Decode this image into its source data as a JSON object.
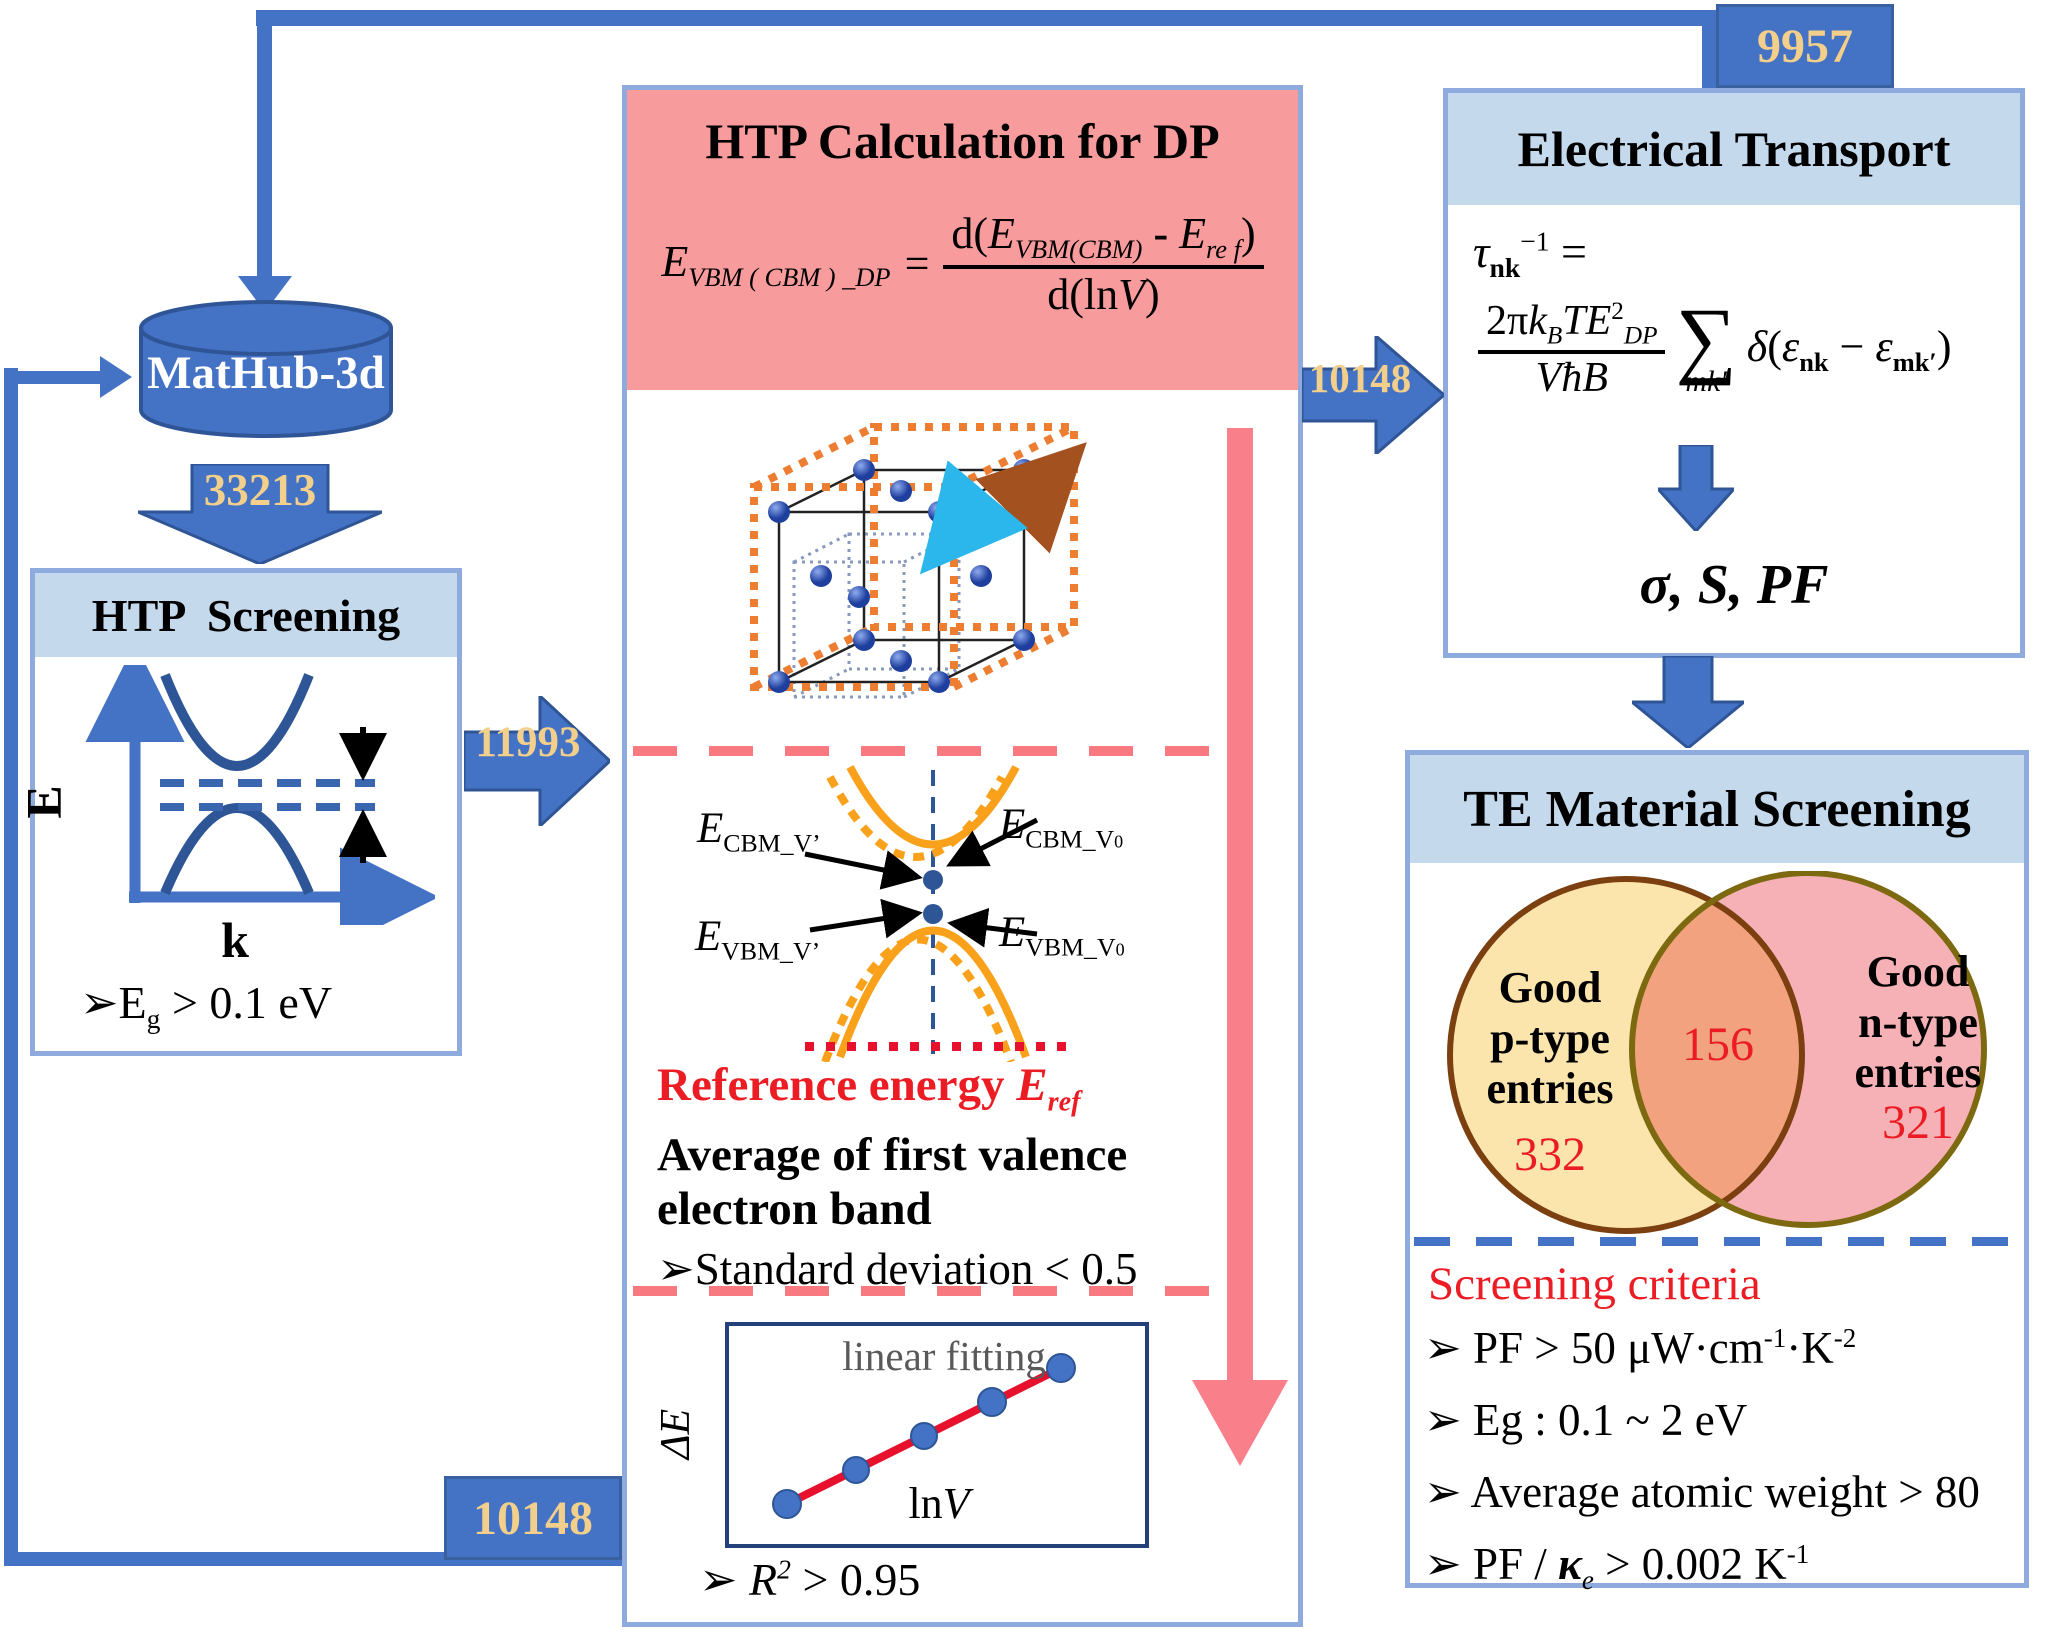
{
  "palette": {
    "blue": "#4472C4",
    "blue_dark": "#2F5597",
    "box_border": "#8FAADC",
    "header_blue": "#C5D9ED",
    "header_pink": "#F89B9D",
    "gold": "#F2CF8B",
    "salmon": "#F8797F",
    "red": "#EC1C24",
    "navy": "#24407A",
    "orange_band": "#F9A11B",
    "orange_cube": "#ED7D31",
    "gray_text": "#595959",
    "venn_left_fill": "#FBE5AC",
    "venn_left_stroke": "#7B3F10",
    "venn_right_fill": "#F6B1B7",
    "venn_right_stroke": "#7D6910",
    "venn_overlap": "#F2A27E"
  },
  "connectors": {
    "top_count": "9957",
    "loop_count": "10148"
  },
  "flow": {
    "db_to_screening": "33213",
    "screening_to_calc": "11993",
    "calc_to_transport": "10148"
  },
  "database": {
    "label": "MatHub-3d"
  },
  "screening": {
    "title": "HTP  Screening",
    "y_axis": "E",
    "x_axis": "k",
    "criterion": [
      {
        "t": "➢"
      },
      {
        "t": "E"
      },
      {
        "t": "g",
        "c": "sub"
      },
      {
        "t": " > 0.1 eV"
      }
    ]
  },
  "calc": {
    "title": "HTP Calculation for DP",
    "eq_lhs": [
      {
        "t": "E",
        "c": "it"
      },
      {
        "t": "VBM ( CBM ) _DP",
        "c": "sub it"
      }
    ],
    "eq_sign": "=",
    "eq_num": [
      {
        "t": "d("
      },
      {
        "t": "E",
        "c": "it"
      },
      {
        "t": "VBM(CBM)",
        "c": "sub it"
      },
      {
        "t": " - ",
        "c": "b"
      },
      {
        "t": "E",
        "c": "it"
      },
      {
        "t": "re f",
        "c": "sub it"
      },
      {
        "t": ")"
      }
    ],
    "eq_den": [
      {
        "t": "d(ln"
      },
      {
        "t": "V",
        "c": "it"
      },
      {
        "t": ")"
      }
    ],
    "band_labels": {
      "cbm_vp": [
        {
          "t": "E",
          "c": "it"
        },
        {
          "t": "CBM_V’",
          "c": "sub"
        }
      ],
      "cbm_v0": [
        {
          "t": "E",
          "c": "it"
        },
        {
          "t": "CBM_V",
          "c": "sub"
        },
        {
          "t": "0",
          "c": "sub2"
        }
      ],
      "vbm_vp": [
        {
          "t": "E",
          "c": "it"
        },
        {
          "t": "VBM_V’",
          "c": "sub"
        }
      ],
      "vbm_v0": [
        {
          "t": "E",
          "c": "it"
        },
        {
          "t": "VBM_V",
          "c": "sub"
        },
        {
          "t": "0",
          "c": "sub2"
        }
      ]
    },
    "ref_energy": [
      {
        "t": "Reference energy "
      },
      {
        "t": "E",
        "c": "it b"
      },
      {
        "t": "ref",
        "c": "sub it b"
      }
    ],
    "avg_band": "Average of first valence electron band",
    "std_criterion": [
      {
        "t": "➢"
      },
      {
        "t": "Standard deviation < 0.5"
      }
    ],
    "plot": {
      "annotation": "linear fitting",
      "y_label": [
        {
          "t": "ΔE",
          "c": "it"
        }
      ],
      "x_label": [
        {
          "t": "ln"
        },
        {
          "t": "V",
          "c": "it"
        }
      ]
    },
    "r2_criterion": [
      {
        "t": "➢ "
      },
      {
        "t": "R",
        "c": "it"
      },
      {
        "t": "2",
        "c": "sup it"
      },
      {
        "t": " > 0.95"
      }
    ]
  },
  "transport": {
    "title": "Electrical Transport",
    "eq_line1": [
      {
        "t": "τ",
        "c": "it"
      },
      {
        "t": "nk",
        "c": "sub b"
      },
      {
        "t": "−1",
        "c": "sup"
      },
      {
        "t": " ="
      }
    ],
    "eq_num": [
      {
        "t": "2π"
      },
      {
        "t": "k",
        "c": "it"
      },
      {
        "t": "B",
        "c": "sub it"
      },
      {
        "t": "TE",
        "c": "it"
      },
      {
        "t": "2",
        "c": "sup"
      },
      {
        "t": "DP",
        "c": "sub it"
      }
    ],
    "eq_den": [
      {
        "t": "V",
        "c": "it"
      },
      {
        "t": "ħ",
        "c": "it"
      },
      {
        "t": "B",
        "c": "it"
      }
    ],
    "sum_symbol": "∑",
    "sum_under": "mk′",
    "eq_delta": [
      {
        "t": "δ",
        "c": "it"
      },
      {
        "t": "("
      },
      {
        "t": "ε",
        "c": "it"
      },
      {
        "t": "nk",
        "c": "sub b"
      },
      {
        "t": " − "
      },
      {
        "t": "ε",
        "c": "it"
      },
      {
        "t": "mk′",
        "c": "sub b"
      },
      {
        "t": ")"
      }
    ],
    "outputs": "σ, S, PF"
  },
  "te": {
    "title": "TE Material Screening",
    "venn": {
      "left_label": "Good\np-type\nentries",
      "left_count": "332",
      "overlap_count": "156",
      "right_label": "Good\nn-type\nentries",
      "right_count": "321"
    },
    "criteria_title": "Screening criteria",
    "criteria": [
      [
        {
          "t": "➢ "
        },
        {
          "t": "PF > 50 μW·cm"
        },
        {
          "t": "-1",
          "c": "sup"
        },
        {
          "t": "·K"
        },
        {
          "t": "-2",
          "c": "sup"
        }
      ],
      [
        {
          "t": "➢ "
        },
        {
          "t": "Eg : 0.1 ~ 2 eV"
        }
      ],
      [
        {
          "t": "➢ "
        },
        {
          "t": "Average atomic weight > 80"
        }
      ],
      [
        {
          "t": "➢ "
        },
        {
          "t": "PF / "
        },
        {
          "t": "κ",
          "c": "it b"
        },
        {
          "t": "e",
          "c": "sub it"
        },
        {
          "t": " > 0.002 K"
        },
        {
          "t": "-1",
          "c": "sup"
        }
      ]
    ]
  }
}
